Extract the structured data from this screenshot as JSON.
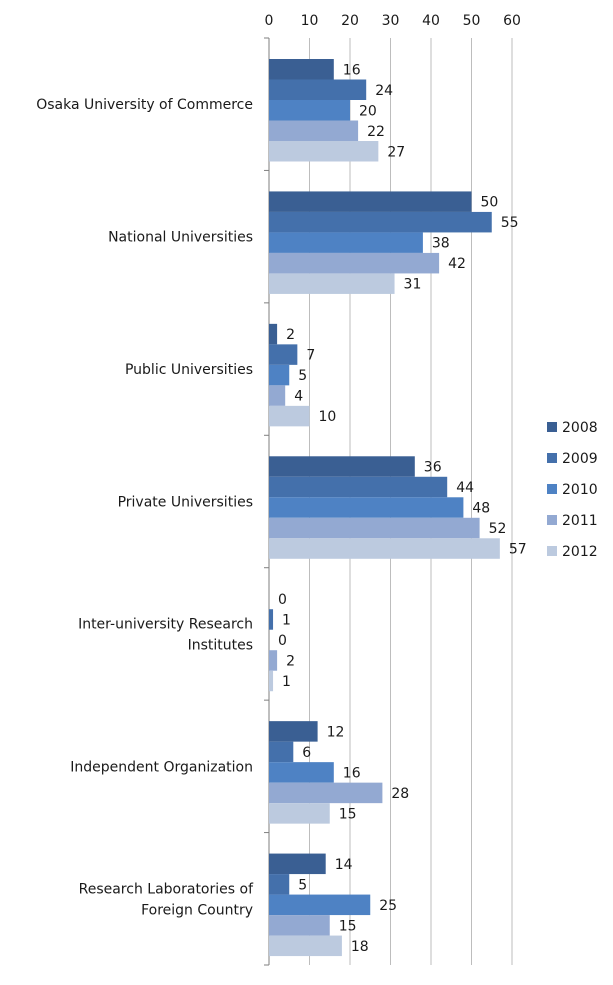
{
  "chart_data": {
    "type": "bar",
    "orientation": "horizontal",
    "title": "",
    "xlabel": "",
    "ylabel": "",
    "xlim": [
      0,
      60
    ],
    "x_ticks": [
      0,
      10,
      20,
      30,
      40,
      50,
      60
    ],
    "x_axis_position": "top",
    "grid": true,
    "legend_position": "right",
    "categories": [
      "Osaka University of Commerce",
      "National Universities",
      "Public Universities",
      "Private Universities",
      "Inter-university Research Institutes",
      "Independent Organization",
      "Research Laboratories of Foreign Country"
    ],
    "series": [
      {
        "name": "2008",
        "color": "#3a5f93",
        "values": [
          16,
          50,
          2,
          36,
          0,
          12,
          14
        ]
      },
      {
        "name": "2009",
        "color": "#4470ab",
        "values": [
          24,
          55,
          7,
          44,
          1,
          6,
          5
        ]
      },
      {
        "name": "2010",
        "color": "#4e82c4",
        "values": [
          20,
          38,
          5,
          48,
          0,
          16,
          25
        ]
      },
      {
        "name": "2011",
        "color": "#93a9d2",
        "values": [
          22,
          42,
          4,
          52,
          2,
          28,
          15
        ]
      },
      {
        "name": "2012",
        "color": "#bccadf",
        "values": [
          27,
          31,
          10,
          57,
          1,
          15,
          18
        ]
      }
    ]
  }
}
